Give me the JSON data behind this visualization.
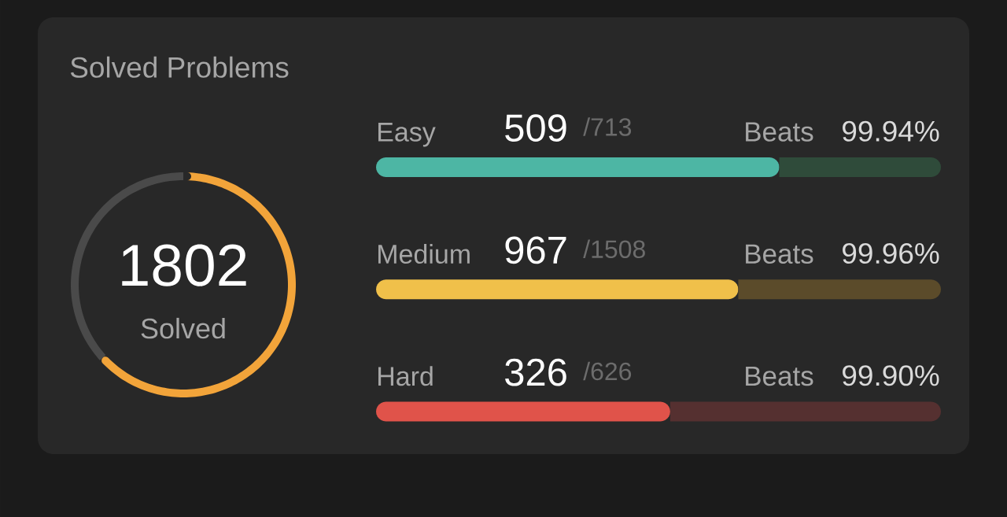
{
  "chart_data": [
    {
      "type": "donut",
      "title": "Solved Problems",
      "categories": [
        "Solved",
        null
      ],
      "values": [
        1802,
        1045
      ],
      "colors": [
        "#f2a43a",
        "#4a4a4a"
      ],
      "value_labels": [
        "1802",
        null
      ]
    },
    {
      "type": "bar",
      "orientation": "horizontal",
      "stacked": true,
      "categories": [
        "Easy"
      ],
      "tick_labels": "y",
      "series": [
        {
          "color": "#4db6a4",
          "values": [
            509
          ],
          "value_labels": [
            "509"
          ]
        },
        {
          "color": "#2f4b3a",
          "values": [
            204
          ]
        }
      ],
      "totals": [
        "/713"
      ],
      "annotations": [
        "Beats",
        "99.94%"
      ]
    },
    {
      "type": "bar",
      "orientation": "horizontal",
      "stacked": true,
      "categories": [
        "Medium"
      ],
      "tick_labels": "y",
      "series": [
        {
          "color": "#f0c04a",
          "values": [
            967
          ],
          "value_labels": [
            "967"
          ]
        },
        {
          "color": "#5b4b2a",
          "values": [
            541
          ]
        }
      ],
      "totals": [
        "/1508"
      ],
      "annotations": [
        "Beats",
        "99.96%"
      ]
    },
    {
      "type": "bar",
      "orientation": "horizontal",
      "stacked": true,
      "categories": [
        "Hard"
      ],
      "tick_labels": "y",
      "series": [
        {
          "color": "#e0534a",
          "values": [
            326
          ],
          "value_labels": [
            "326"
          ]
        },
        {
          "color": "#553030",
          "values": [
            300
          ]
        }
      ],
      "totals": [
        "/626"
      ],
      "annotations": [
        "Beats",
        "99.90%"
      ]
    }
  ]
}
